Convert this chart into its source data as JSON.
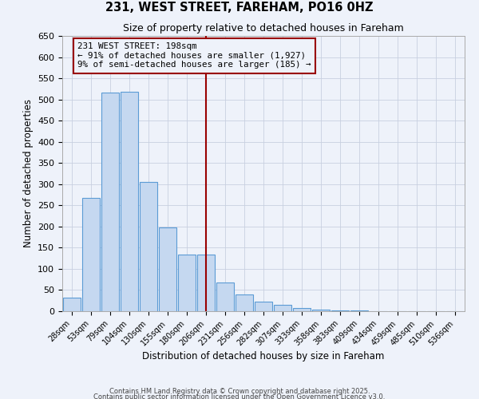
{
  "title": "231, WEST STREET, FAREHAM, PO16 0HZ",
  "subtitle": "Size of property relative to detached houses in Fareham",
  "xlabel": "Distribution of detached houses by size in Fareham",
  "ylabel": "Number of detached properties",
  "bin_labels": [
    "28sqm",
    "53sqm",
    "79sqm",
    "104sqm",
    "130sqm",
    "155sqm",
    "180sqm",
    "206sqm",
    "231sqm",
    "256sqm",
    "282sqm",
    "307sqm",
    "333sqm",
    "358sqm",
    "383sqm",
    "409sqm",
    "434sqm",
    "459sqm",
    "485sqm",
    "510sqm",
    "536sqm"
  ],
  "bar_values": [
    32,
    267,
    517,
    519,
    305,
    198,
    133,
    133,
    67,
    40,
    22,
    15,
    8,
    3,
    2,
    1,
    0,
    0,
    0,
    0,
    0
  ],
  "bar_color": "#c5d8f0",
  "bar_edge_color": "#5b9bd5",
  "vline_x_idx": 7,
  "vline_color": "#990000",
  "annotation_text": "231 WEST STREET: 198sqm\n← 91% of detached houses are smaller (1,927)\n9% of semi-detached houses are larger (185) →",
  "annotation_box_color": "#990000",
  "background_color": "#eef2fa",
  "grid_color": "#c8d0e0",
  "ylim": [
    0,
    650
  ],
  "yticks": [
    0,
    50,
    100,
    150,
    200,
    250,
    300,
    350,
    400,
    450,
    500,
    550,
    600,
    650
  ],
  "footer_line1": "Contains HM Land Registry data © Crown copyright and database right 2025.",
  "footer_line2": "Contains public sector information licensed under the Open Government Licence v3.0."
}
